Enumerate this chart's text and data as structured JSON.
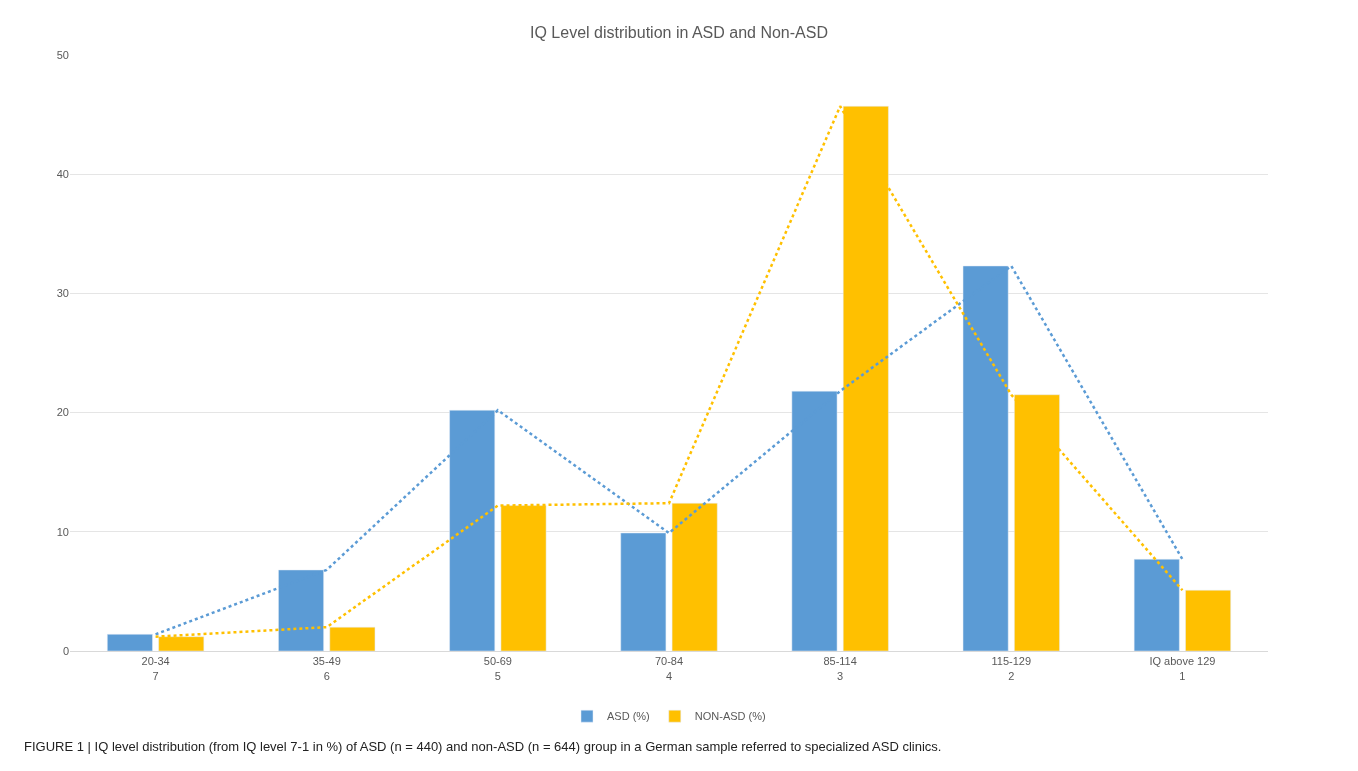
{
  "chart_data": {
    "type": "bar",
    "title": "IQ Level distribution in ASD and Non-ASD",
    "categories": [
      "20-34\n7",
      "35-49\n6",
      "50-69\n5",
      "70-84\n4",
      "85-114\n3",
      "115-129\n2",
      "IQ above 129\n1"
    ],
    "series": [
      {
        "name": "ASD (%)",
        "color": "#5b9bd5",
        "values": [
          1.4,
          6.8,
          20.2,
          9.9,
          21.8,
          32.3,
          7.7
        ]
      },
      {
        "name": "NON-ASD (%)",
        "color": "#ffc000",
        "values": [
          1.2,
          2.0,
          12.2,
          12.4,
          45.7,
          21.5,
          5.1
        ]
      },
      {
        "type": "line",
        "color": "#5b9bd5",
        "line_style": "dotted",
        "marker": "none",
        "values": [
          1.4,
          6.8,
          20.2,
          9.9,
          21.8,
          32.3,
          7.7
        ]
      },
      {
        "type": "line",
        "color": "#ffc000",
        "line_style": "dotted",
        "marker": "none",
        "values": [
          1.2,
          2.0,
          12.2,
          12.4,
          45.7,
          21.5,
          5.1
        ]
      }
    ],
    "ylim": [
      0,
      50
    ],
    "yticks": [
      0,
      10,
      20,
      30,
      40,
      50
    ],
    "grid": "y",
    "legend": "bottom",
    "annotations": [
      "FIGURE 1 | IQ level distribution (from IQ level 7-1 in %) of ASD (n = 440) and non-ASD (n = 644) group in a German sample referred to specialized ASD clinics."
    ]
  }
}
